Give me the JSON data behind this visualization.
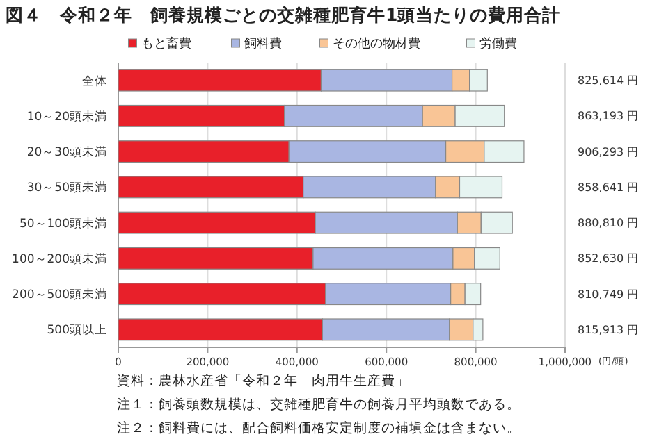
{
  "chart_data": {
    "type": "bar",
    "orientation": "horizontal",
    "stacked": true,
    "title": "図４　令和２年　飼養規模ごとの交雑種肥育牛1頭当たりの費用合計",
    "categories": [
      "全体",
      "10～20頭未満",
      "20～30頭未満",
      "30～50頭未満",
      "50～100頭未満",
      "100～200頭未満",
      "200～500頭未満",
      "500頭以上"
    ],
    "series": [
      {
        "name": "もと畜費",
        "color": "#e8202a",
        "values": [
          454000,
          372000,
          382000,
          414000,
          441000,
          436000,
          464000,
          457000
        ]
      },
      {
        "name": "飼料費",
        "color": "#a9b6e2",
        "values": [
          293000,
          309000,
          351000,
          296000,
          318000,
          313000,
          280000,
          284000
        ]
      },
      {
        "name": "その他の物材費",
        "color": "#f9c596",
        "values": [
          39000,
          73000,
          86000,
          54000,
          53000,
          48000,
          32000,
          53000
        ]
      },
      {
        "name": "労働費",
        "color": "#e6f4f1",
        "values": [
          40000,
          110000,
          89000,
          95000,
          70000,
          57000,
          35000,
          22000
        ]
      }
    ],
    "xlabel": "(円/頭)",
    "xlim": [
      0,
      1000000
    ],
    "xticks": [
      {
        "value": 0,
        "label": "0"
      },
      {
        "value": 200000,
        "label": "200,000"
      },
      {
        "value": 400000,
        "label": "400,000"
      },
      {
        "value": 600000,
        "label": "600,000"
      },
      {
        "value": 800000,
        "label": "800,000"
      },
      {
        "value": 1000000,
        "label": "1,000,000"
      }
    ],
    "grid": "x",
    "legend": "top",
    "annotations": [
      "825,614 円",
      "863,193 円",
      "906,293 円",
      "858,641 円",
      "880,810 円",
      "852,630 円",
      "810,749 円",
      "815,913 円",
      "資料：農林水産省「令和２年　肉用牛生産費」",
      "注１：飼養頭数規模は、交雑種肥育牛の飼養月平均頭数である。",
      "注２：飼料費には、配合飼料価格安定制度の補塡金は含まない。"
    ]
  }
}
